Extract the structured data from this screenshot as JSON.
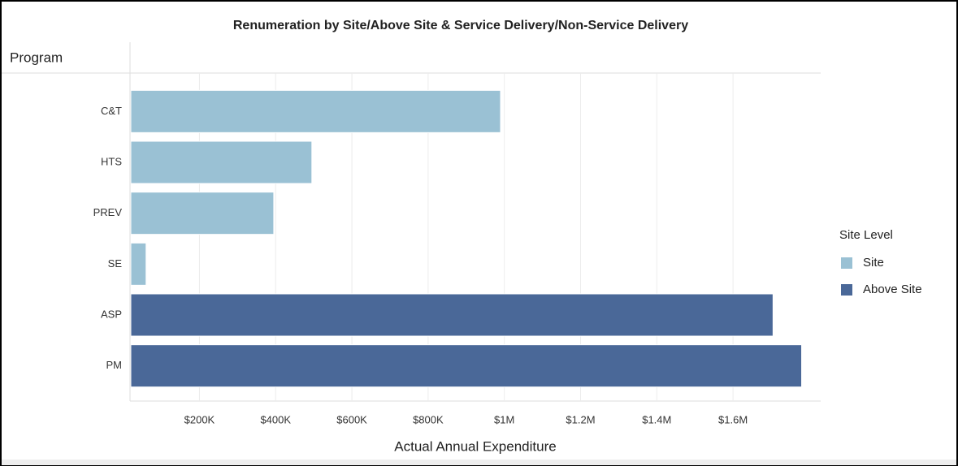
{
  "chart_data": {
    "type": "hbar",
    "title": "Renumeration by Site/Above Site & Service Delivery/Non-Service Delivery",
    "y_label": "Program",
    "x_label": "Actual Annual Expenditure",
    "legend_title": "Site Level",
    "legend": "right",
    "grid": true,
    "categories": [
      "C&T",
      "HTS",
      "PREV",
      "SE",
      "ASP",
      "PM"
    ],
    "series": [
      {
        "name": "Site",
        "color": "#9ac1d4",
        "values": [
          990000,
          495000,
          395000,
          60000,
          null,
          null
        ]
      },
      {
        "name": "Above Site",
        "color": "#4a6898",
        "values": [
          null,
          null,
          null,
          null,
          1705000,
          1780000
        ]
      }
    ],
    "xlim": [
      20000,
      1830000
    ],
    "xticks": [
      {
        "value": 200000,
        "label": "$200K"
      },
      {
        "value": 400000,
        "label": "$400K"
      },
      {
        "value": 600000,
        "label": "$600K"
      },
      {
        "value": 800000,
        "label": "$800K"
      },
      {
        "value": 1000000,
        "label": "$1M"
      },
      {
        "value": 1200000,
        "label": "$1.2M"
      },
      {
        "value": 1400000,
        "label": "$1.4M"
      },
      {
        "value": 1600000,
        "label": "$1.6M"
      }
    ]
  }
}
